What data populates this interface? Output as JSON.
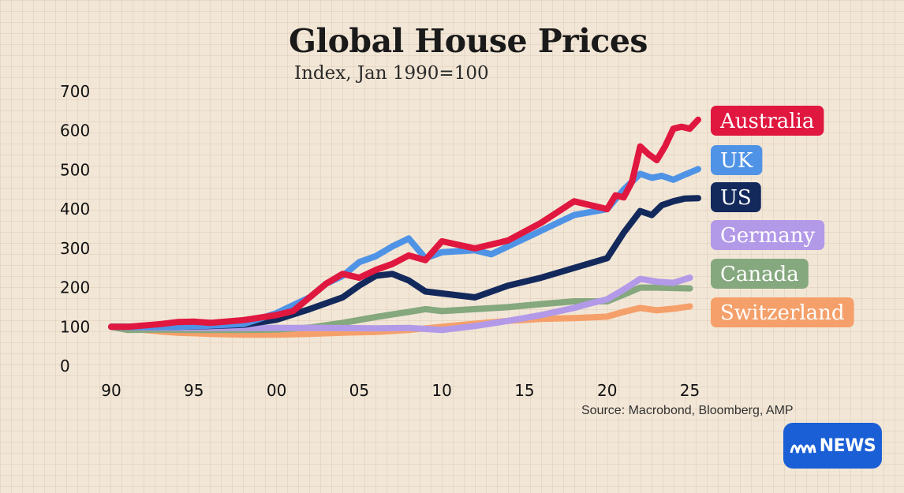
{
  "title": "Global House Prices",
  "subtitle": "Index, Jan 1990=100",
  "source": "Source: Macrobond, Bloomberg, AMP",
  "brand": {
    "name": "NEWS",
    "accent": "#1a5fd6"
  },
  "chart_data": {
    "type": "line",
    "title": "Global House Prices",
    "subtitle": "Index, Jan 1990=100",
    "xlabel": "",
    "ylabel": "",
    "xlim": [
      1990,
      2025.5
    ],
    "ylim": [
      0,
      700
    ],
    "yticks": [
      0,
      100,
      200,
      300,
      400,
      500,
      600,
      700
    ],
    "ytick_labels": [
      "0",
      "100",
      "200",
      "300",
      "400",
      "500",
      "600",
      "700"
    ],
    "xticks": [
      1990,
      1995,
      2000,
      2005,
      2010,
      2015,
      2020,
      2025
    ],
    "xtick_labels": [
      "90",
      "95",
      "00",
      "05",
      "10",
      "15",
      "20",
      "25"
    ],
    "grid": false,
    "legend_position": "right",
    "series": [
      {
        "name": "Switzerland",
        "color": "#f5a06a",
        "x": [
          1990,
          1992,
          1993,
          1994,
          1996,
          1998,
          2000,
          2002,
          2004,
          2006,
          2008,
          2010,
          2012,
          2014,
          2016,
          2018,
          2020,
          2021,
          2022,
          2023,
          2024,
          2025
        ],
        "values": [
          100,
          92,
          88,
          85,
          82,
          80,
          80,
          82,
          85,
          87,
          92,
          100,
          108,
          115,
          120,
          122,
          126,
          138,
          148,
          142,
          146,
          152
        ]
      },
      {
        "name": "Canada",
        "color": "#85a87e",
        "x": [
          1990,
          1991,
          1993,
          1995,
          1998,
          2000,
          2002,
          2004,
          2006,
          2008,
          2009,
          2010,
          2012,
          2014,
          2016,
          2018,
          2020,
          2021,
          2022,
          2023,
          2025
        ],
        "values": [
          100,
          92,
          93,
          92,
          92,
          93,
          98,
          110,
          125,
          138,
          145,
          140,
          145,
          150,
          158,
          165,
          165,
          182,
          200,
          200,
          198
        ]
      },
      {
        "name": "Germany",
        "color": "#b39ae8",
        "x": [
          1990,
          1992,
          1995,
          1998,
          2000,
          2003,
          2006,
          2008,
          2010,
          2012,
          2014,
          2016,
          2018,
          2019,
          2020,
          2021,
          2022,
          2023,
          2024,
          2025
        ],
        "values": [
          100,
          98,
          97,
          97,
          97,
          97,
          96,
          97,
          92,
          102,
          115,
          130,
          148,
          160,
          170,
          195,
          222,
          215,
          212,
          225
        ]
      },
      {
        "name": "US",
        "color": "#13295c",
        "x": [
          1990,
          1992,
          1994,
          1996,
          1998,
          2000,
          2002,
          2004,
          2005,
          2006,
          2007,
          2008,
          2009,
          2010,
          2012,
          2014,
          2016,
          2018,
          2020,
          2021,
          2022,
          2022.7,
          2023.3,
          2024,
          2024.7,
          2025.5
        ],
        "values": [
          100,
          100,
          100,
          102,
          105,
          118,
          145,
          175,
          205,
          230,
          235,
          218,
          190,
          185,
          175,
          205,
          225,
          250,
          275,
          340,
          395,
          385,
          410,
          420,
          427,
          428
        ]
      },
      {
        "name": "UK",
        "color": "#4f93e6",
        "x": [
          1990,
          1992,
          1994,
          1996,
          1998,
          2000,
          2002,
          2003,
          2004,
          2005,
          2006,
          2007,
          2008,
          2009,
          2010,
          2012,
          2013,
          2014,
          2016,
          2018,
          2020,
          2021,
          2022,
          2022.7,
          2023.3,
          2024,
          2024.7,
          2025.5
        ],
        "values": [
          100,
          100,
          100,
          103,
          107,
          135,
          175,
          210,
          230,
          265,
          280,
          305,
          325,
          275,
          290,
          295,
          285,
          305,
          345,
          385,
          400,
          450,
          490,
          480,
          485,
          475,
          488,
          502
        ]
      },
      {
        "name": "Australia",
        "color": "#e0173f",
        "x": [
          1990,
          1991,
          1993,
          1994,
          1995,
          1996,
          1998,
          2000,
          2001,
          2002,
          2003,
          2004,
          2005,
          2006,
          2007,
          2008,
          2009,
          2010,
          2012,
          2014,
          2016,
          2018,
          2019,
          2020,
          2020.5,
          2021,
          2021.5,
          2022,
          2022.5,
          2023,
          2023.5,
          2024,
          2024.5,
          2025,
          2025.5
        ],
        "values": [
          100,
          100,
          107,
          112,
          113,
          110,
          117,
          130,
          140,
          175,
          210,
          235,
          225,
          245,
          260,
          282,
          270,
          318,
          300,
          320,
          365,
          420,
          410,
          400,
          435,
          430,
          470,
          560,
          540,
          525,
          560,
          605,
          610,
          605,
          628
        ]
      }
    ]
  },
  "legend_order": [
    "Australia",
    "UK",
    "US",
    "Germany",
    "Canada",
    "Switzerland"
  ]
}
